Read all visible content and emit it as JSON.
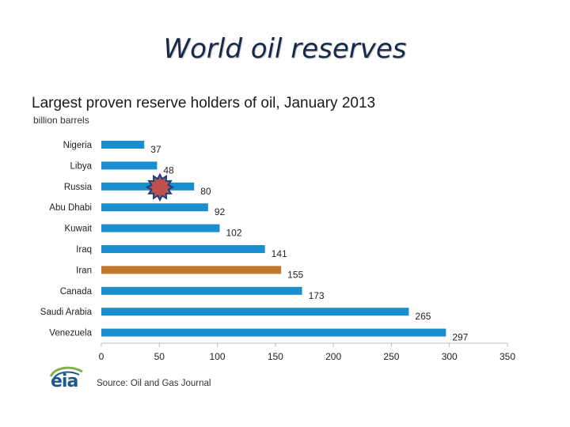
{
  "slide": {
    "title": "World oil reserves"
  },
  "source_text": "Source: Oil and Gas Journal",
  "logo_text": "eia",
  "colors": {
    "bar": "#1b8ed0",
    "highlight_bar": "#c0782f",
    "star_fill": "#c0504d",
    "star_stroke": "#1f3f7a"
  },
  "chart_data": {
    "type": "bar",
    "orientation": "horizontal",
    "title": "Largest proven reserve holders of oil, January 2013",
    "subtitle": "billion barrels",
    "categories": [
      "Nigeria",
      "Libya",
      "Russia",
      "Abu Dhabi",
      "Kuwait",
      "Iraq",
      "Iran",
      "Canada",
      "Saudi Arabia",
      "Venezuela"
    ],
    "values": [
      37,
      48,
      80,
      92,
      102,
      141,
      155,
      173,
      265,
      297
    ],
    "highlighted": [
      "Iran"
    ],
    "star_marker_on": "Russia",
    "xlim": [
      0,
      350
    ],
    "xticks": [
      0,
      50,
      100,
      150,
      200,
      250,
      300,
      350
    ],
    "xlabel": "",
    "ylabel": ""
  }
}
